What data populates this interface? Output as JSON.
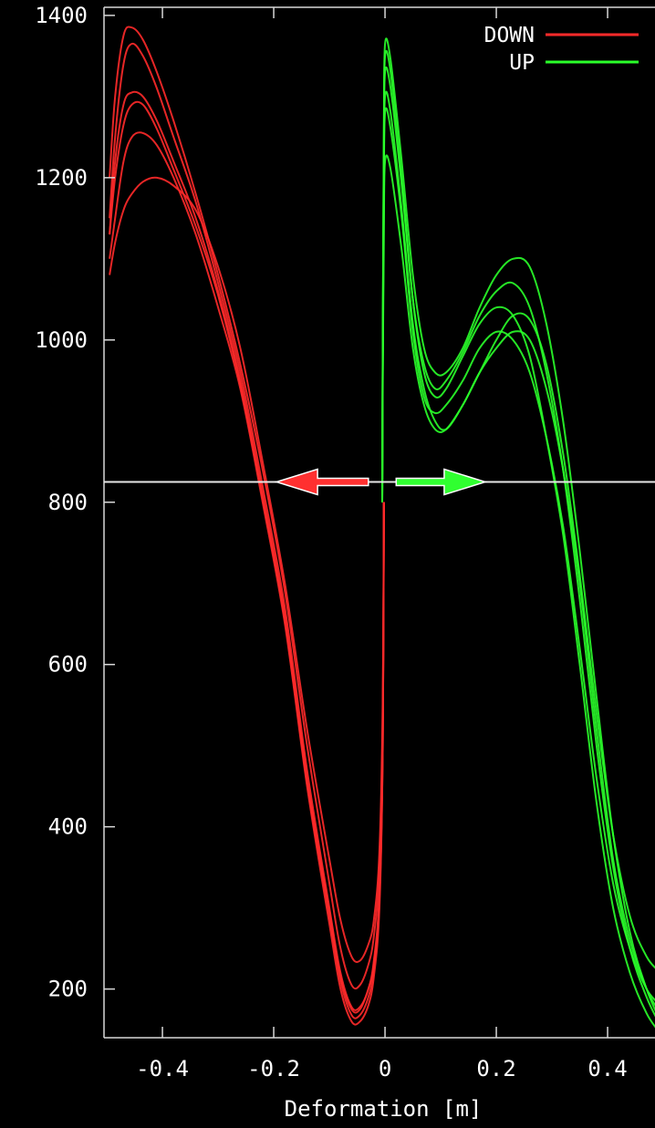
{
  "chart_data": {
    "type": "line",
    "title": "",
    "xlabel": "Deformation [m]",
    "ylabel": "",
    "xlim": [
      -0.505,
      0.495
    ],
    "ylim": [
      140,
      1410
    ],
    "xticks": [
      {
        "value": -0.4,
        "label": "-0.4"
      },
      {
        "value": -0.2,
        "label": "-0.2"
      },
      {
        "value": 0,
        "label": "0"
      },
      {
        "value": 0.2,
        "label": "0.2"
      },
      {
        "value": 0.4,
        "label": "0.4"
      }
    ],
    "yticks": [
      {
        "value": 200,
        "label": "200"
      },
      {
        "value": 400,
        "label": "400"
      },
      {
        "value": 600,
        "label": "600"
      },
      {
        "value": 800,
        "label": "800"
      },
      {
        "value": 1000,
        "label": "1000"
      },
      {
        "value": 1200,
        "label": "1200"
      },
      {
        "value": 1400,
        "label": "1400"
      }
    ],
    "grid": false,
    "legend_position": "top-right",
    "reference_line": {
      "y": 825
    },
    "arrows": [
      {
        "direction": "left",
        "x_from": -0.03,
        "x_to": -0.195,
        "y": 825,
        "color": "#ff3030"
      },
      {
        "direction": "right",
        "x_from": 0.02,
        "x_to": 0.18,
        "y": 825,
        "color": "#30ff30"
      }
    ],
    "series": [
      {
        "name": "DOWN",
        "color": "#ff2a2a",
        "curves": [
          {
            "x": [
              -0.002,
              -0.004,
              -0.01,
              -0.02,
              -0.03,
              -0.045,
              -0.06,
              -0.08,
              -0.1,
              -0.14,
              -0.18,
              -0.22,
              -0.26,
              -0.3,
              -0.34,
              -0.38,
              -0.41,
              -0.435,
              -0.455,
              -0.47,
              -0.485,
              -0.495
            ],
            "y": [
              800,
              500,
              300,
              215,
              180,
              160,
              160,
              200,
              280,
              450,
              650,
              800,
              940,
              1040,
              1130,
              1200,
              1240,
              1255,
              1250,
              1220,
              1150,
              1100
            ]
          },
          {
            "x": [
              -0.002,
              -0.004,
              -0.01,
              -0.02,
              -0.03,
              -0.045,
              -0.06,
              -0.08,
              -0.1,
              -0.14,
              -0.18,
              -0.22,
              -0.26,
              -0.3,
              -0.34,
              -0.38,
              -0.41,
              -0.435,
              -0.455,
              -0.47,
              -0.485,
              -0.495
            ],
            "y": [
              800,
              520,
              320,
              235,
              200,
              178,
              178,
              220,
              300,
              470,
              670,
              820,
              960,
              1070,
              1170,
              1250,
              1310,
              1350,
              1365,
              1340,
              1250,
              1150
            ]
          },
          {
            "x": [
              -0.002,
              -0.004,
              -0.01,
              -0.02,
              -0.03,
              -0.045,
              -0.06,
              -0.08,
              -0.1,
              -0.14,
              -0.18,
              -0.22,
              -0.26,
              -0.3,
              -0.34,
              -0.38,
              -0.41,
              -0.435,
              -0.455,
              -0.47,
              -0.485,
              -0.495
            ],
            "y": [
              800,
              540,
              350,
              265,
              230,
              205,
              205,
              250,
              330,
              500,
              690,
              840,
              970,
              1080,
              1180,
              1270,
              1330,
              1370,
              1385,
              1375,
              1300,
              1200
            ]
          },
          {
            "x": [
              -0.002,
              -0.004,
              -0.01,
              -0.02,
              -0.03,
              -0.045,
              -0.06,
              -0.08,
              -0.1,
              -0.14,
              -0.18,
              -0.22,
              -0.26,
              -0.3,
              -0.34,
              -0.38,
              -0.41,
              -0.435,
              -0.455,
              -0.47,
              -0.485,
              -0.495
            ],
            "y": [
              800,
              500,
              310,
              230,
              200,
              175,
              175,
              215,
              295,
              460,
              660,
              810,
              950,
              1060,
              1150,
              1220,
              1270,
              1300,
              1305,
              1290,
              1220,
              1130
            ]
          },
          {
            "x": [
              -0.002,
              -0.004,
              -0.01,
              -0.02,
              -0.03,
              -0.045,
              -0.06,
              -0.08,
              -0.1,
              -0.14,
              -0.18,
              -0.22,
              -0.26,
              -0.3,
              -0.34,
              -0.38,
              -0.41,
              -0.435,
              -0.455,
              -0.47,
              -0.485,
              -0.495
            ],
            "y": [
              800,
              560,
              370,
              285,
              255,
              235,
              240,
              285,
              360,
              520,
              700,
              850,
              990,
              1090,
              1160,
              1190,
              1200,
              1195,
              1180,
              1160,
              1120,
              1080
            ]
          },
          {
            "x": [
              -0.002,
              -0.004,
              -0.01,
              -0.02,
              -0.03,
              -0.045,
              -0.06,
              -0.08,
              -0.1,
              -0.14,
              -0.18,
              -0.22,
              -0.26,
              -0.3,
              -0.34,
              -0.38,
              -0.41,
              -0.435,
              -0.455,
              -0.47,
              -0.485,
              -0.495
            ],
            "y": [
              800,
              510,
              315,
              225,
              190,
              168,
              168,
              210,
              290,
              455,
              655,
              805,
              945,
              1055,
              1140,
              1210,
              1260,
              1290,
              1290,
              1265,
              1200,
              1130
            ]
          }
        ]
      },
      {
        "name": "UP",
        "color": "#2aff2a",
        "curves": [
          {
            "x": [
              -0.005,
              -0.004,
              -0.002,
              0.0,
              0.01,
              0.03,
              0.05,
              0.07,
              0.09,
              0.11,
              0.14,
              0.17,
              0.2,
              0.23,
              0.26,
              0.29,
              0.32,
              0.35,
              0.38,
              0.41,
              0.44,
              0.47,
              0.495
            ],
            "y": [
              800,
              1000,
              1250,
              1350,
              1330,
              1200,
              1050,
              960,
              930,
              940,
              980,
              1020,
              1040,
              1030,
              980,
              880,
              760,
              600,
              430,
              300,
              220,
              170,
              145
            ]
          },
          {
            "x": [
              -0.005,
              -0.004,
              -0.002,
              0.0,
              0.01,
              0.03,
              0.05,
              0.07,
              0.09,
              0.11,
              0.14,
              0.17,
              0.2,
              0.23,
              0.26,
              0.29,
              0.32,
              0.35,
              0.38,
              0.41,
              0.44,
              0.47,
              0.495
            ],
            "y": [
              800,
              980,
              1200,
              1300,
              1280,
              1160,
              1020,
              940,
              900,
              890,
              920,
              960,
              990,
              1010,
              1000,
              940,
              840,
              700,
              520,
              360,
              260,
              200,
              170
            ]
          },
          {
            "x": [
              -0.005,
              -0.004,
              -0.002,
              0.0,
              0.01,
              0.03,
              0.05,
              0.07,
              0.09,
              0.11,
              0.14,
              0.17,
              0.2,
              0.23,
              0.26,
              0.29,
              0.32,
              0.35,
              0.38,
              0.41,
              0.44,
              0.47,
              0.495
            ],
            "y": [
              800,
              1000,
              1260,
              1365,
              1345,
              1220,
              1080,
              990,
              960,
              960,
              990,
              1040,
              1080,
              1100,
              1090,
              1020,
              900,
              740,
              560,
              390,
              270,
              200,
              160
            ]
          },
          {
            "x": [
              -0.005,
              -0.004,
              -0.002,
              0.0,
              0.01,
              0.03,
              0.05,
              0.07,
              0.09,
              0.11,
              0.14,
              0.17,
              0.2,
              0.23,
              0.26,
              0.29,
              0.32,
              0.35,
              0.38,
              0.41,
              0.44,
              0.47,
              0.495
            ],
            "y": [
              800,
              970,
              1180,
              1280,
              1260,
              1150,
              1010,
              930,
              910,
              920,
              950,
              990,
              1010,
              1000,
              960,
              880,
              770,
              620,
              460,
              330,
              250,
              200,
              180
            ]
          },
          {
            "x": [
              -0.005,
              -0.004,
              -0.002,
              0.0,
              0.01,
              0.03,
              0.05,
              0.07,
              0.09,
              0.11,
              0.14,
              0.17,
              0.2,
              0.23,
              0.26,
              0.29,
              0.32,
              0.35,
              0.38,
              0.41,
              0.44,
              0.47,
              0.495
            ],
            "y": [
              800,
              950,
              1130,
              1220,
              1210,
              1110,
              990,
              920,
              890,
              890,
              920,
              960,
              1000,
              1030,
              1025,
              970,
              860,
              710,
              540,
              390,
              290,
              240,
              220
            ]
          },
          {
            "x": [
              -0.005,
              -0.004,
              -0.002,
              0.0,
              0.01,
              0.03,
              0.05,
              0.07,
              0.09,
              0.11,
              0.14,
              0.17,
              0.2,
              0.23,
              0.26,
              0.29,
              0.32,
              0.35,
              0.38,
              0.41,
              0.44,
              0.47,
              0.495
            ],
            "y": [
              800,
              990,
              1230,
              1330,
              1310,
              1190,
              1050,
              970,
              940,
              950,
              985,
              1030,
              1060,
              1070,
              1040,
              960,
              840,
              680,
              500,
              350,
              250,
              190,
              155
            ]
          }
        ]
      }
    ]
  }
}
